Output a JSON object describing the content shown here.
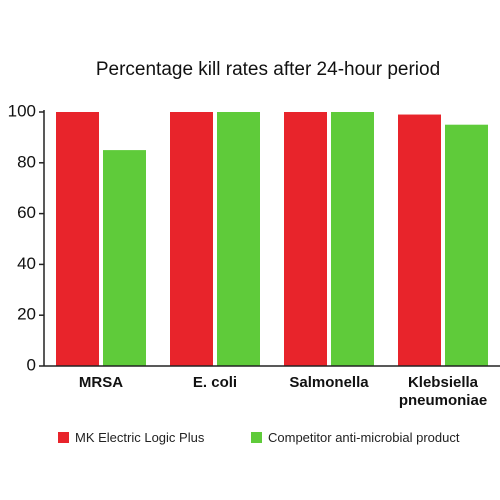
{
  "chart_data": {
    "type": "bar",
    "title": "Percentage kill rates after 24-hour period",
    "categories": [
      "MRSA",
      "E. coli",
      "Salmonella",
      "Klebsiella pneumoniae"
    ],
    "series": [
      {
        "name": "MK Electric Logic Plus",
        "color": "#e8242b",
        "values": [
          100,
          100,
          100,
          99
        ]
      },
      {
        "name": "Competitor anti-microbial product",
        "color": "#5fcb3a",
        "values": [
          85,
          100,
          100,
          95
        ]
      }
    ],
    "ylim": [
      0,
      100
    ],
    "yticks": [
      0,
      20,
      40,
      60,
      80,
      100
    ],
    "grid": false,
    "legend": "bottom"
  }
}
